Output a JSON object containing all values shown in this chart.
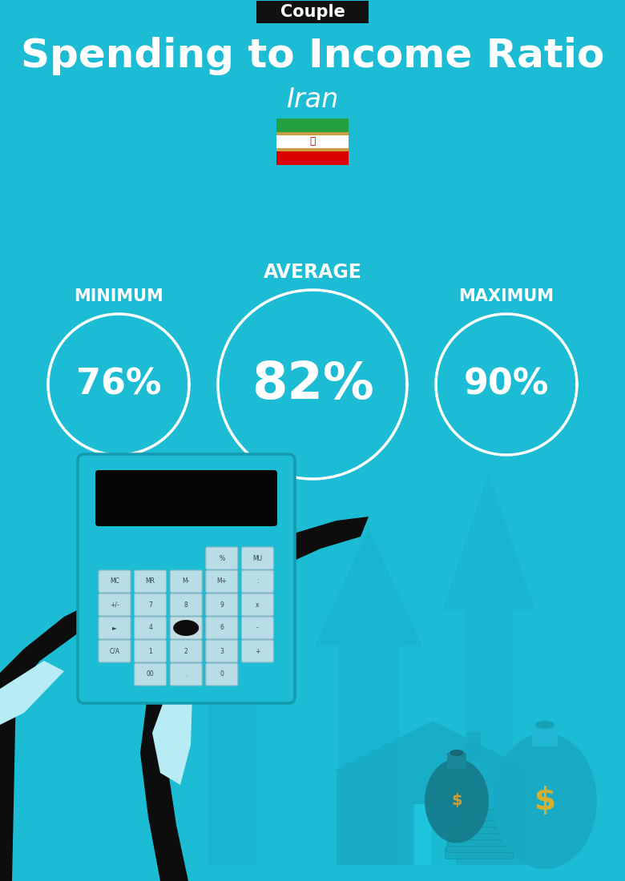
{
  "bg_color": "#1bbcd4",
  "title": "Spending to Income Ratio",
  "subtitle": "Iran",
  "tag": "Couple",
  "tag_bg": "#111111",
  "tag_color": "#ffffff",
  "title_color": "#ffffff",
  "subtitle_color": "#ffffff",
  "min_label": "MINIMUM",
  "avg_label": "AVERAGE",
  "max_label": "MAXIMUM",
  "min_value": "76%",
  "avg_value": "82%",
  "max_value": "90%",
  "label_color": "#ffffff",
  "figsize": [
    7.8,
    11.0
  ],
  "flag_green": "#239f40",
  "flag_white": "#ffffff",
  "flag_red": "#da0000",
  "flag_emblem_color": "#cc0000",
  "arrow_color": "#19aec8",
  "house_color": "#18aac5",
  "bag1_color": "#157a8a",
  "bag2_color": "#19aac5",
  "btn_color": "#b8dde6",
  "calc_color": "#1bbcd4",
  "dark": "#0d0d0d",
  "cuff_color": "#b8ecf5"
}
